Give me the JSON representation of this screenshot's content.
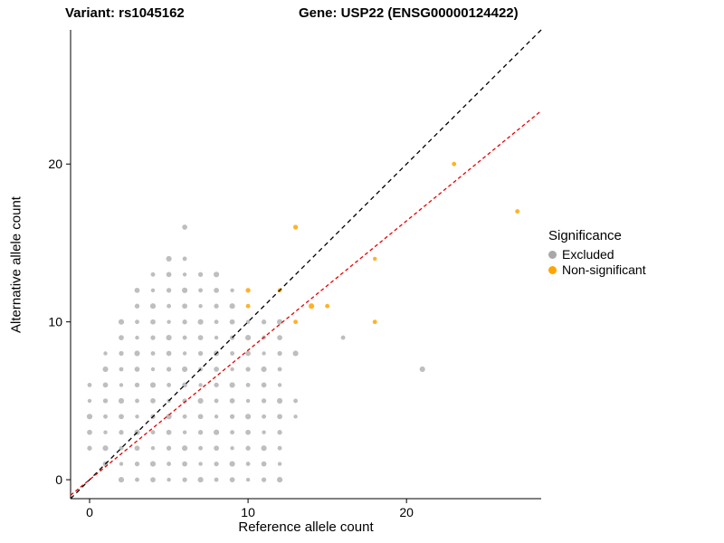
{
  "titles": {
    "left": "Variant: rs1045162",
    "right": "Gene: USP22 (ENSG00000124422)"
  },
  "axes": {
    "x_label": "Reference allele count",
    "y_label": "Alternative allele count",
    "x_ticks": [
      0,
      10,
      20
    ],
    "y_ticks": [
      0,
      10,
      20
    ]
  },
  "legend": {
    "title": "Significance",
    "items": [
      {
        "label": "Excluded",
        "color": "#a8a8a8"
      },
      {
        "label": "Non-significant",
        "color": "#FFA500"
      }
    ]
  },
  "chart_data": {
    "type": "scatter",
    "title_left": "Variant: rs1045162",
    "title_right": "Gene: USP22 (ENSG00000124422)",
    "xlabel": "Reference allele count",
    "ylabel": "Alternative allele count",
    "xlim": [
      -1.2,
      28.5
    ],
    "ylim": [
      -1.2,
      28.5
    ],
    "grid": false,
    "legend_position": "right",
    "series": [
      {
        "name": "Excluded",
        "color": "#b3b3b3",
        "points": [
          [
            2,
            0
          ],
          [
            3,
            0
          ],
          [
            4,
            0
          ],
          [
            5,
            0
          ],
          [
            6,
            0
          ],
          [
            7,
            0
          ],
          [
            8,
            0
          ],
          [
            9,
            0
          ],
          [
            10,
            0
          ],
          [
            11,
            0
          ],
          [
            12,
            0
          ],
          [
            1,
            1
          ],
          [
            2,
            1
          ],
          [
            3,
            1
          ],
          [
            4,
            1
          ],
          [
            5,
            1
          ],
          [
            6,
            1
          ],
          [
            7,
            1
          ],
          [
            8,
            1
          ],
          [
            9,
            1
          ],
          [
            10,
            1
          ],
          [
            11,
            1
          ],
          [
            12,
            1
          ],
          [
            0,
            2
          ],
          [
            1,
            2
          ],
          [
            2,
            2
          ],
          [
            3,
            2
          ],
          [
            4,
            2
          ],
          [
            5,
            2
          ],
          [
            6,
            2
          ],
          [
            7,
            2
          ],
          [
            8,
            2
          ],
          [
            9,
            2
          ],
          [
            10,
            2
          ],
          [
            11,
            2
          ],
          [
            12,
            2
          ],
          [
            0,
            3
          ],
          [
            1,
            3
          ],
          [
            2,
            3
          ],
          [
            3,
            3
          ],
          [
            4,
            3
          ],
          [
            5,
            3
          ],
          [
            6,
            3
          ],
          [
            7,
            3
          ],
          [
            8,
            3
          ],
          [
            9,
            3
          ],
          [
            10,
            3
          ],
          [
            11,
            3
          ],
          [
            12,
            3
          ],
          [
            0,
            4
          ],
          [
            1,
            4
          ],
          [
            2,
            4
          ],
          [
            3,
            4
          ],
          [
            4,
            4
          ],
          [
            5,
            4
          ],
          [
            6,
            4
          ],
          [
            7,
            4
          ],
          [
            8,
            4
          ],
          [
            9,
            4
          ],
          [
            10,
            4
          ],
          [
            11,
            4
          ],
          [
            12,
            4
          ],
          [
            13,
            4
          ],
          [
            0,
            5
          ],
          [
            1,
            5
          ],
          [
            2,
            5
          ],
          [
            3,
            5
          ],
          [
            4,
            5
          ],
          [
            5,
            5
          ],
          [
            6,
            5
          ],
          [
            7,
            5
          ],
          [
            8,
            5
          ],
          [
            9,
            5
          ],
          [
            10,
            5
          ],
          [
            11,
            5
          ],
          [
            12,
            5
          ],
          [
            13,
            5
          ],
          [
            0,
            6
          ],
          [
            1,
            6
          ],
          [
            2,
            6
          ],
          [
            3,
            6
          ],
          [
            4,
            6
          ],
          [
            5,
            6
          ],
          [
            6,
            6
          ],
          [
            7,
            6
          ],
          [
            8,
            6
          ],
          [
            9,
            6
          ],
          [
            10,
            6
          ],
          [
            11,
            6
          ],
          [
            12,
            6
          ],
          [
            1,
            7
          ],
          [
            2,
            7
          ],
          [
            3,
            7
          ],
          [
            4,
            7
          ],
          [
            5,
            7
          ],
          [
            6,
            7
          ],
          [
            7,
            7
          ],
          [
            8,
            7
          ],
          [
            9,
            7
          ],
          [
            10,
            7
          ],
          [
            11,
            7
          ],
          [
            12,
            7
          ],
          [
            21,
            7
          ],
          [
            1,
            8
          ],
          [
            2,
            8
          ],
          [
            3,
            8
          ],
          [
            4,
            8
          ],
          [
            5,
            8
          ],
          [
            6,
            8
          ],
          [
            7,
            8
          ],
          [
            8,
            8
          ],
          [
            9,
            8
          ],
          [
            10,
            8
          ],
          [
            11,
            8
          ],
          [
            12,
            8
          ],
          [
            13,
            8
          ],
          [
            2,
            9
          ],
          [
            3,
            9
          ],
          [
            4,
            9
          ],
          [
            5,
            9
          ],
          [
            6,
            9
          ],
          [
            7,
            9
          ],
          [
            8,
            9
          ],
          [
            9,
            9
          ],
          [
            10,
            9
          ],
          [
            11,
            9
          ],
          [
            12,
            9
          ],
          [
            16,
            9
          ],
          [
            2,
            10
          ],
          [
            3,
            10
          ],
          [
            4,
            10
          ],
          [
            5,
            10
          ],
          [
            6,
            10
          ],
          [
            7,
            10
          ],
          [
            8,
            10
          ],
          [
            9,
            10
          ],
          [
            10,
            10
          ],
          [
            11,
            10
          ],
          [
            12,
            10
          ],
          [
            3,
            11
          ],
          [
            4,
            11
          ],
          [
            5,
            11
          ],
          [
            6,
            11
          ],
          [
            7,
            11
          ],
          [
            8,
            11
          ],
          [
            9,
            11
          ],
          [
            3,
            12
          ],
          [
            4,
            12
          ],
          [
            5,
            12
          ],
          [
            6,
            12
          ],
          [
            7,
            12
          ],
          [
            8,
            12
          ],
          [
            9,
            12
          ],
          [
            4,
            13
          ],
          [
            5,
            13
          ],
          [
            6,
            13
          ],
          [
            7,
            13
          ],
          [
            8,
            13
          ],
          [
            5,
            14
          ],
          [
            6,
            14
          ],
          [
            6,
            16
          ]
        ]
      },
      {
        "name": "Non-significant",
        "color": "#FFA500",
        "points": [
          [
            10,
            11
          ],
          [
            10,
            12
          ],
          [
            12,
            12
          ],
          [
            13,
            10
          ],
          [
            13,
            16
          ],
          [
            14,
            11
          ],
          [
            15,
            11
          ],
          [
            18,
            10
          ],
          [
            18,
            14
          ],
          [
            23,
            20
          ],
          [
            27,
            17
          ]
        ]
      }
    ],
    "lines": [
      {
        "name": "identity-line",
        "color": "#000000",
        "dash": "5,4",
        "slope": 1.0,
        "intercept": 0
      },
      {
        "name": "fit-line",
        "color": "#e60000",
        "dash": "4,3",
        "slope": 0.82,
        "intercept": 0
      }
    ]
  }
}
